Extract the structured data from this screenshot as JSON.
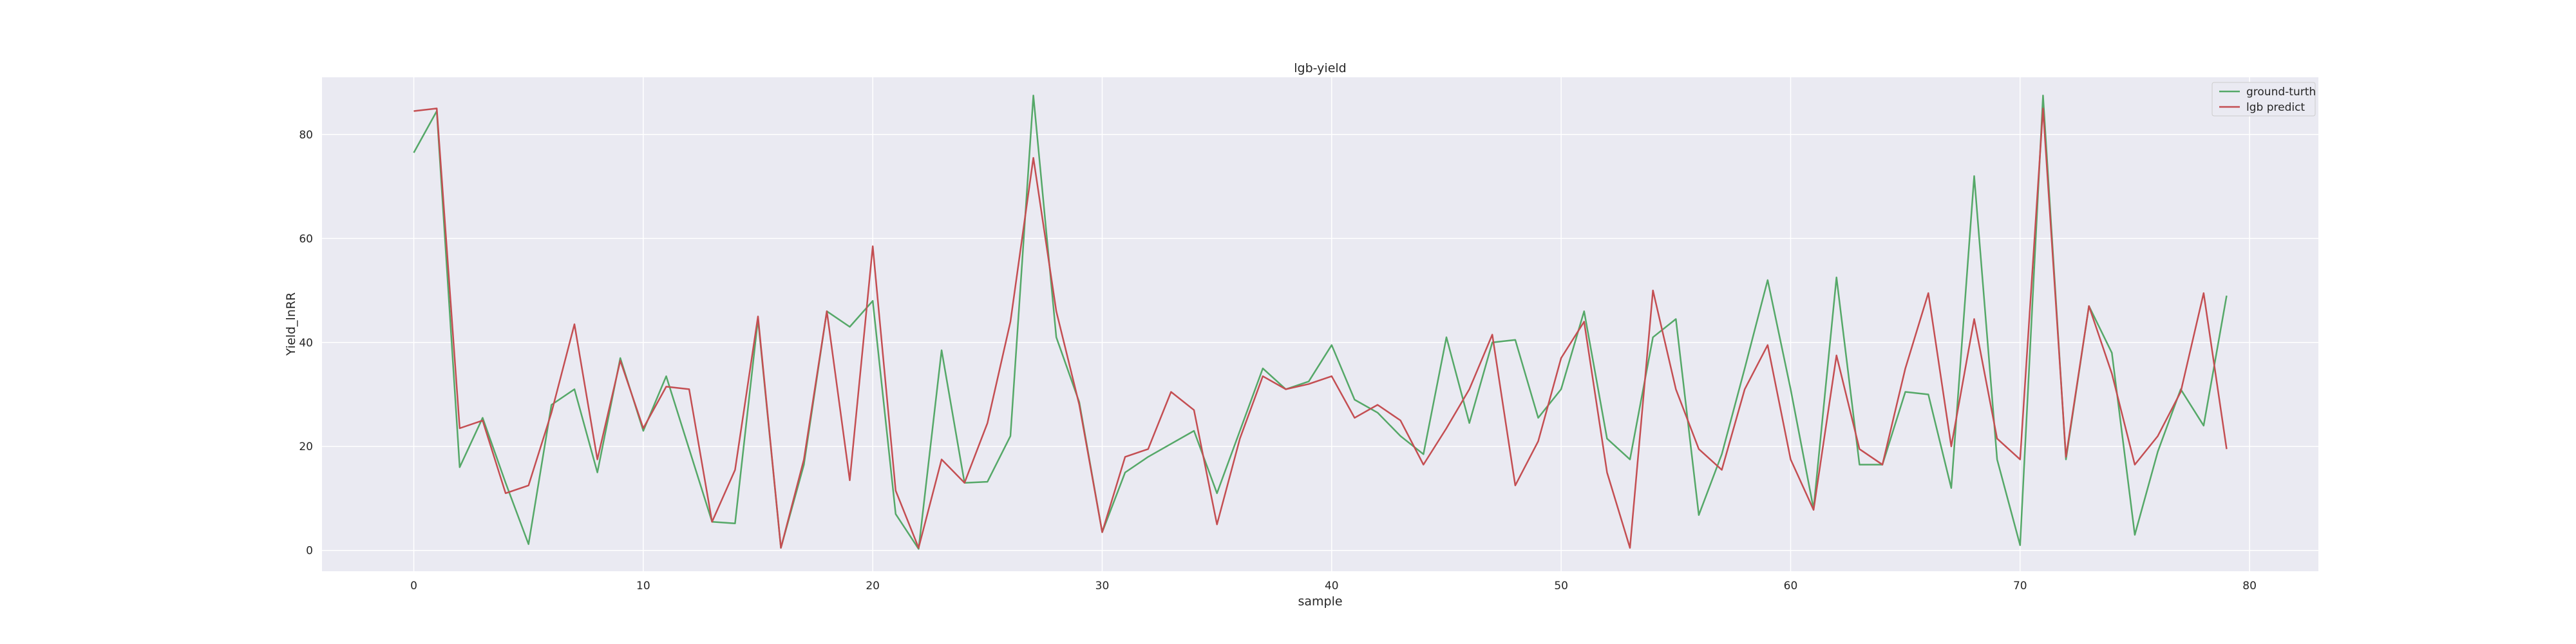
{
  "chart_data": {
    "type": "line",
    "title": "lgb-yield",
    "xlabel": "sample",
    "ylabel": "Yield_lnRR",
    "xlim": [
      -4,
      83
    ],
    "ylim": [
      -4,
      91
    ],
    "xticks": [
      0,
      10,
      20,
      30,
      40,
      50,
      60,
      70,
      80
    ],
    "yticks": [
      0,
      20,
      40,
      60,
      80
    ],
    "grid": true,
    "legend_position": "top-right",
    "background": "#eaeaf2",
    "x": [
      0,
      1,
      2,
      3,
      4,
      5,
      6,
      7,
      8,
      9,
      10,
      11,
      12,
      13,
      14,
      15,
      16,
      17,
      18,
      19,
      20,
      21,
      22,
      23,
      24,
      25,
      26,
      27,
      28,
      29,
      30,
      31,
      32,
      33,
      34,
      35,
      36,
      37,
      38,
      39,
      40,
      41,
      42,
      43,
      44,
      45,
      46,
      47,
      48,
      49,
      50,
      51,
      52,
      53,
      54,
      55,
      56,
      57,
      58,
      59,
      60,
      61,
      62,
      63,
      64,
      65,
      66,
      67,
      68,
      69,
      70,
      71,
      72,
      73,
      74,
      75,
      76,
      77,
      78,
      79
    ],
    "series": [
      {
        "name": "ground-turth",
        "color": "#55a868",
        "values": [
          76.5,
          84.5,
          16,
          25.5,
          13,
          1.2,
          28,
          31,
          15,
          37,
          23,
          33.5,
          19.5,
          5.5,
          5.2,
          44.5,
          0.5,
          16.5,
          46,
          43,
          48,
          7,
          0.3,
          38.5,
          13,
          13.2,
          22,
          87.5,
          41,
          28.5,
          3.5,
          15,
          18,
          20.5,
          23,
          11,
          23,
          35,
          31,
          32.5,
          39.5,
          29,
          26.5,
          22,
          18.5,
          41,
          24.5,
          40,
          40.5,
          25.5,
          31,
          46,
          21.5,
          17.5,
          41,
          44.5,
          6.8,
          18.5,
          35,
          52,
          31,
          8,
          52.5,
          16.5,
          16.5,
          30.5,
          30,
          12,
          72,
          17.5,
          1,
          87.5,
          17.5,
          47,
          38,
          3,
          19,
          31,
          24,
          49
        ]
      },
      {
        "name": "lgb predict",
        "color": "#c44e52",
        "values": [
          84.5,
          85,
          23.5,
          25,
          11,
          12.5,
          26.5,
          43.5,
          17.5,
          36.5,
          23.5,
          31.5,
          31,
          5.5,
          15.5,
          45,
          0.5,
          17.5,
          46,
          13.5,
          58.5,
          11.5,
          0.5,
          17.5,
          13,
          24.5,
          44,
          75.5,
          46,
          28,
          3.5,
          18,
          19.5,
          30.5,
          27,
          5,
          21.5,
          33.5,
          31,
          32,
          33.5,
          25.5,
          28,
          25,
          16.5,
          23.5,
          31,
          41.5,
          12.5,
          21,
          37,
          44,
          15,
          0.5,
          50,
          31,
          19.5,
          15.5,
          31,
          39.5,
          17.5,
          7.8,
          37.5,
          19.5,
          16.5,
          35,
          49.5,
          20,
          44.5,
          21.5,
          17.5,
          85,
          18,
          47,
          34,
          16.5,
          22,
          30.5,
          49.5,
          19.5
        ]
      }
    ]
  }
}
